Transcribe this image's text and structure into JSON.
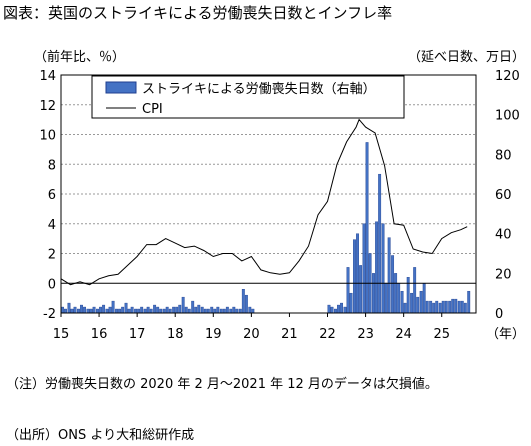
{
  "title": "図表：英国のストライキによる労働喪失日数とインフレ率",
  "left_unit": "（前年比、％）",
  "right_unit": "（延べ日数、万日）",
  "note": "（注）労働喪失日数の 2020 年 2 月～2021 年 12 月のデータは欠損値。",
  "source": "（出所）ONS より大和総研作成",
  "colors": {
    "bar": "#4472C4",
    "bar_edge": "#1F3F8F",
    "line": "#000000",
    "grid": "#999999"
  },
  "chart_data": {
    "type": "bar+line",
    "x_unit_label": "（年）",
    "x_ticks": [
      "15",
      "16",
      "17",
      "18",
      "19",
      "20",
      "21",
      "22",
      "23",
      "24",
      "25"
    ],
    "xlim": [
      2015.0,
      2025.9
    ],
    "left_axis": {
      "ylim": [
        -2,
        14
      ],
      "ticks": [
        -2,
        0,
        2,
        4,
        6,
        8,
        10,
        12,
        14
      ]
    },
    "right_axis": {
      "ylim": [
        0,
        120
      ],
      "ticks": [
        0,
        20,
        40,
        60,
        80,
        100,
        120
      ]
    },
    "grid": "horizontal dotted",
    "legend": {
      "position": "top-left"
    },
    "series": [
      {
        "name": "ストライキによる労働喪失日数（右軸）",
        "type": "bar",
        "axis": "right",
        "x": [
          2015.0,
          2015.08,
          2015.17,
          2015.25,
          2015.33,
          2015.42,
          2015.5,
          2015.58,
          2015.67,
          2015.75,
          2015.83,
          2015.92,
          2016.0,
          2016.08,
          2016.17,
          2016.25,
          2016.33,
          2016.42,
          2016.5,
          2016.58,
          2016.67,
          2016.75,
          2016.83,
          2016.92,
          2017.0,
          2017.08,
          2017.17,
          2017.25,
          2017.33,
          2017.42,
          2017.5,
          2017.58,
          2017.67,
          2017.75,
          2017.83,
          2017.92,
          2018.0,
          2018.08,
          2018.17,
          2018.25,
          2018.33,
          2018.42,
          2018.5,
          2018.58,
          2018.67,
          2018.75,
          2018.83,
          2018.92,
          2019.0,
          2019.08,
          2019.17,
          2019.25,
          2019.33,
          2019.42,
          2019.5,
          2019.58,
          2019.67,
          2019.75,
          2019.83,
          2019.92,
          2020.0,
          2022.0,
          2022.08,
          2022.17,
          2022.25,
          2022.33,
          2022.42,
          2022.5,
          2022.58,
          2022.67,
          2022.75,
          2022.83,
          2022.92,
          2023.0,
          2023.08,
          2023.17,
          2023.25,
          2023.33,
          2023.42,
          2023.5,
          2023.58,
          2023.67,
          2023.75,
          2023.83,
          2023.92,
          2024.0,
          2024.08,
          2024.17,
          2024.25,
          2024.33,
          2024.42,
          2024.5,
          2024.58,
          2024.67,
          2024.75,
          2024.83,
          2024.92,
          2025.0,
          2025.08,
          2025.17,
          2025.25,
          2025.33,
          2025.42,
          2025.5,
          2025.58,
          2025.67
        ],
        "values": [
          3,
          2,
          5,
          2,
          3,
          2,
          4,
          3,
          2,
          2,
          3,
          2,
          3,
          4,
          2,
          3,
          6,
          2,
          2,
          3,
          5,
          2,
          3,
          2,
          2,
          3,
          2,
          3,
          2,
          4,
          3,
          2,
          2,
          3,
          2,
          3,
          3,
          4,
          8,
          3,
          2,
          6,
          3,
          4,
          3,
          2,
          2,
          3,
          2,
          3,
          2,
          2,
          3,
          2,
          3,
          2,
          2,
          12,
          9,
          3,
          2,
          4,
          3,
          2,
          4,
          5,
          3,
          23,
          10,
          37,
          40,
          24,
          45,
          86,
          30,
          20,
          46,
          70,
          45,
          15,
          38,
          29,
          20,
          15,
          11,
          5,
          18,
          10,
          23,
          8,
          11,
          15,
          6,
          6,
          5,
          6,
          5,
          6,
          6,
          6,
          7,
          7,
          6,
          6,
          5,
          11
        ]
      },
      {
        "name": "CPI",
        "type": "line",
        "axis": "left",
        "x": [
          2015.0,
          2015.25,
          2015.5,
          2015.75,
          2016.0,
          2016.25,
          2016.5,
          2016.75,
          2017.0,
          2017.25,
          2017.5,
          2017.75,
          2018.0,
          2018.25,
          2018.5,
          2018.75,
          2019.0,
          2019.25,
          2019.5,
          2019.75,
          2020.0,
          2020.25,
          2020.5,
          2020.75,
          2021.0,
          2021.25,
          2021.5,
          2021.75,
          2022.0,
          2022.25,
          2022.5,
          2022.75,
          2022.83,
          2023.0,
          2023.25,
          2023.5,
          2023.75,
          2024.0,
          2024.25,
          2024.5,
          2024.75,
          2025.0,
          2025.25,
          2025.5,
          2025.67
        ],
        "values": [
          0.3,
          -0.1,
          0.1,
          -0.1,
          0.3,
          0.5,
          0.6,
          1.2,
          1.8,
          2.6,
          2.6,
          3.0,
          2.7,
          2.4,
          2.5,
          2.2,
          1.8,
          2.0,
          2.0,
          1.5,
          1.8,
          0.9,
          0.7,
          0.6,
          0.7,
          1.5,
          2.5,
          4.6,
          5.5,
          8.0,
          9.5,
          10.5,
          11.0,
          10.5,
          10.1,
          7.9,
          4.0,
          3.9,
          2.3,
          2.1,
          2.0,
          3.0,
          3.4,
          3.6,
          3.8
        ]
      }
    ]
  }
}
